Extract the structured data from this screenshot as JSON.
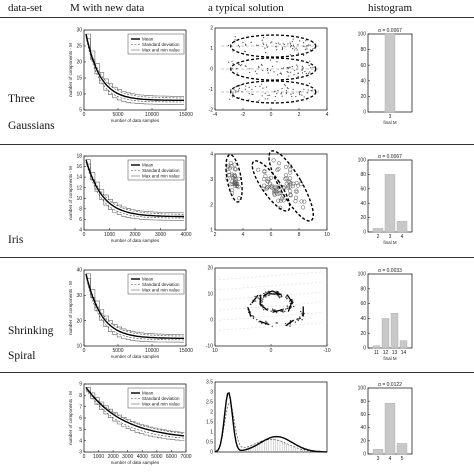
{
  "headers": {
    "dataset": "data-set",
    "m": "M with new data",
    "solution": "a typical solution",
    "histogram": "histogram"
  },
  "legend": {
    "mean": "Mean",
    "std": "Standard deviation",
    "maxmin": "Max and min value"
  },
  "m_ylabel": "number of components - M",
  "m_xlabel": "number of data samples",
  "hist_xlabel": "final M",
  "rows": [
    {
      "dataset_lines": [
        "Three",
        "Gaussians"
      ],
      "m_plot": {
        "xticks": [
          "0",
          "5000",
          "10000",
          "15000"
        ],
        "yticks": [
          "5",
          "10",
          "15",
          "20",
          "25",
          "30"
        ],
        "xlim": [
          0,
          17000
        ],
        "ylim": [
          0,
          30
        ]
      },
      "solution": {
        "xticks": [
          "-4",
          "-2",
          "0",
          "2",
          "4"
        ],
        "yticks": [
          "2",
          "1",
          "0",
          "-1",
          "-2"
        ]
      },
      "hist": {
        "title": "α = 0.0067",
        "categories": [
          "3"
        ],
        "values": [
          100
        ],
        "yticks": [
          "0",
          "20",
          "40",
          "60",
          "80",
          "100"
        ]
      }
    },
    {
      "dataset_lines": [
        "Iris"
      ],
      "m_plot": {
        "xticks": [
          "0",
          "1000",
          "2000",
          "3000",
          "4000"
        ],
        "yticks": [
          "4",
          "6",
          "8",
          "10",
          "12",
          "14",
          "16",
          "18"
        ],
        "xlim": [
          0,
          4500
        ],
        "ylim": [
          2,
          18
        ]
      },
      "solution": {
        "xticks": [
          "2",
          "4",
          "6",
          "8",
          "10"
        ],
        "yticks": [
          "4",
          "3",
          "2",
          "1"
        ]
      },
      "hist": {
        "title": "α = 0.0067",
        "categories": [
          "2",
          "3",
          "4"
        ],
        "values": [
          5,
          80,
          15
        ],
        "yticks": [
          "0",
          "20",
          "40",
          "60",
          "80",
          "100"
        ]
      }
    },
    {
      "dataset_lines": [
        "Shrinking",
        "Spiral"
      ],
      "m_plot": {
        "xticks": [
          "0",
          "5000",
          "10000",
          "15000"
        ],
        "yticks": [
          "10",
          "20",
          "30",
          "40"
        ],
        "xlim": [
          0,
          17000
        ],
        "ylim": [
          10,
          40
        ]
      },
      "solution": {
        "xticks": [
          "10",
          "0",
          "-10"
        ],
        "yticks": [
          "20",
          "10",
          "0",
          "-10"
        ]
      },
      "hist": {
        "title": "α = 0.0033",
        "categories": [
          "11",
          "12",
          "13",
          "14"
        ],
        "values": [
          3,
          40,
          47,
          10
        ],
        "yticks": [
          "0",
          "20",
          "40",
          "60",
          "80",
          "100"
        ]
      }
    },
    {
      "dataset_lines": [],
      "m_plot": {
        "xticks": [
          "0",
          "1000",
          "2000",
          "3000",
          "4000",
          "5000",
          "6000",
          "7000"
        ],
        "yticks": [
          "3",
          "4",
          "5",
          "6",
          "7",
          "8",
          "9"
        ],
        "xlim": [
          0,
          7200
        ],
        "ylim": [
          3,
          9
        ]
      },
      "solution": {
        "xticks": [],
        "yticks": [
          "3.5",
          "3",
          "2.5",
          "2",
          "1.5",
          "1",
          "0.5",
          "0"
        ]
      },
      "hist": {
        "title": "α = 0.0122",
        "categories": [
          "3",
          "4",
          "5"
        ],
        "values": [
          7,
          77,
          16
        ],
        "yticks": [
          "0",
          "20",
          "40",
          "60",
          "80",
          "100"
        ]
      }
    }
  ]
}
